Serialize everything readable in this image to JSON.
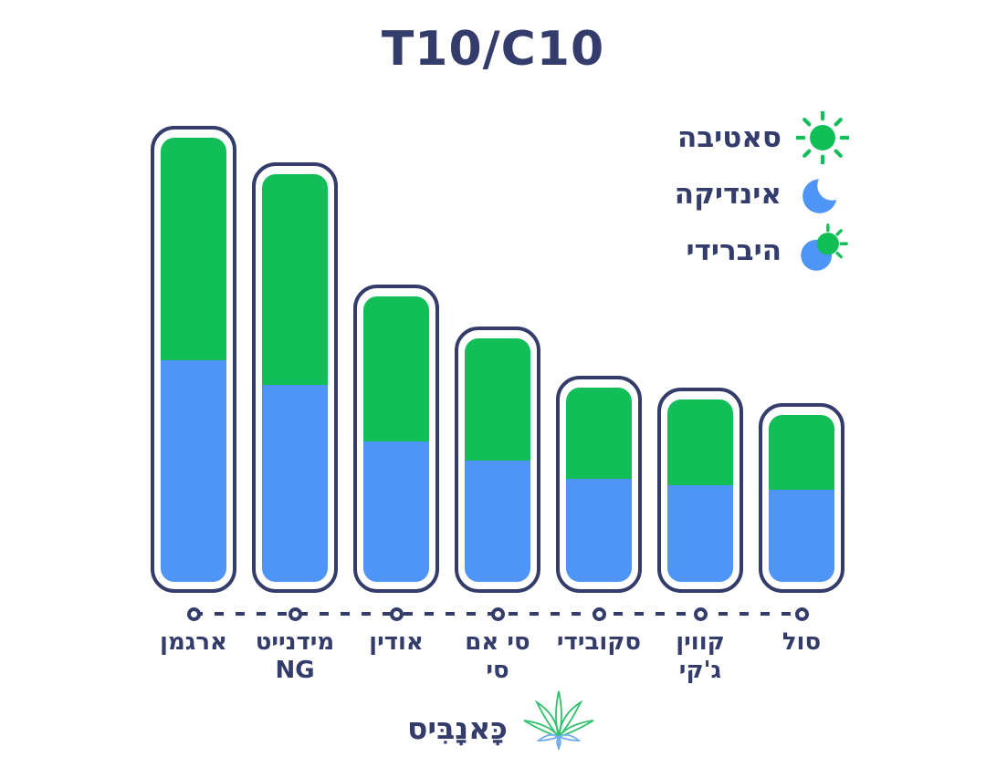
{
  "title": "T10/C10",
  "colors": {
    "sativa_green": "#12BE58",
    "indica_blue": "#4F95F7",
    "outline_navy": "#333C6A",
    "background": "#FFFFFF",
    "leaf_green": "#2EC06A",
    "leaf_blue": "#6FABEF"
  },
  "legend": {
    "position": "top-right",
    "items": [
      {
        "type": "sativa",
        "label": "סאטיבה",
        "icon": "sun-icon"
      },
      {
        "type": "indica",
        "label": "אינדיקה",
        "icon": "moon-icon"
      },
      {
        "type": "hybrid",
        "label": "היברידי",
        "icon": "sun-moon-icon"
      }
    ]
  },
  "chart_data": {
    "type": "bar",
    "stacked": true,
    "orientation": "vertical",
    "title": "T10/C10",
    "categories": [
      "ארגמן",
      "מידנייט NG",
      "אודין",
      "סי אם סי",
      "סקובידי",
      "קווין ג'קי",
      "סול"
    ],
    "category_lines": [
      [
        "ארגמן"
      ],
      [
        "מידנייט",
        "NG"
      ],
      [
        "אודין"
      ],
      [
        "סי אם",
        "סי"
      ],
      [
        "סקובידי"
      ],
      [
        "קווין",
        "ג'קי"
      ],
      [
        "סול"
      ]
    ],
    "series": [
      {
        "name": "סאטיבה",
        "role": "sativa",
        "color": "#12BE58",
        "values": [
          244,
          231,
          159,
          134,
          100,
          94,
          82
        ]
      },
      {
        "name": "אינדיקה",
        "role": "indica",
        "color": "#4F95F7",
        "values": [
          243,
          216,
          154,
          133,
          113,
          106,
          101
        ]
      }
    ],
    "totals": [
      487,
      447,
      313,
      267,
      213,
      200,
      183
    ],
    "units": "relative bar height (no numeric axis shown in figure)",
    "ylabel": "",
    "xlabel": "",
    "grid": false,
    "legend_position": "top-right",
    "axis_style": "dashed line with circular markers under each bar"
  },
  "footer": {
    "brand": "כָּאנָבִּיס",
    "logo": "cannabis-leaf-icon"
  }
}
